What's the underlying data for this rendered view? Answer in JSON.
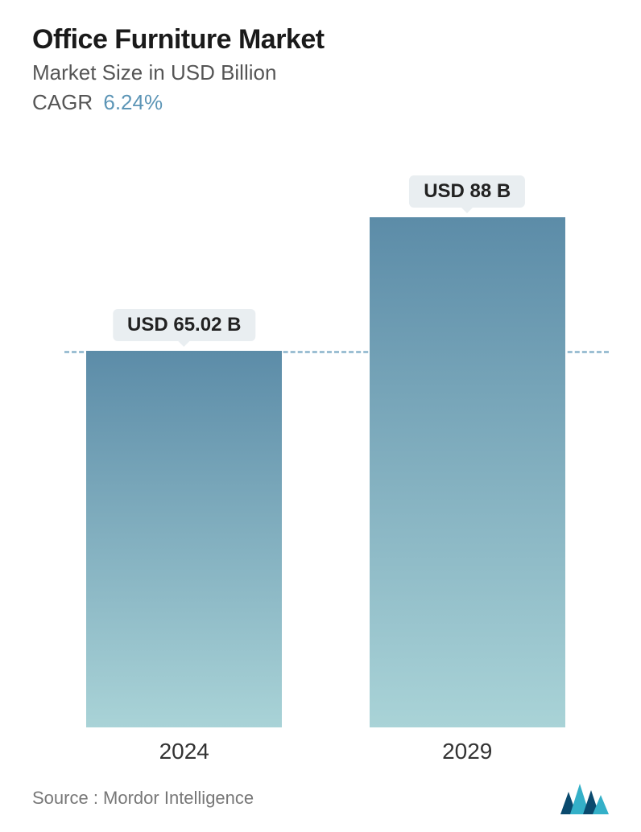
{
  "header": {
    "title": "Office Furniture Market",
    "subtitle": "Market Size in USD Billion",
    "cagr_label": "CAGR",
    "cagr_value": "6.24%",
    "cagr_value_color": "#5c95b6",
    "title_fontsize": 34,
    "subtitle_fontsize": 26
  },
  "chart": {
    "type": "bar",
    "background_color": "#ffffff",
    "bar_gradient_top": "#5c8ca8",
    "bar_gradient_bottom": "#a9d3d7",
    "badge_background": "#e9eef1",
    "badge_text_color": "#222222",
    "badge_fontsize": 24,
    "x_label_fontsize": 28,
    "x_label_color": "#333333",
    "dashed_line_color": "#5c95b6",
    "dashed_line_opacity": 0.6,
    "ylim": [
      0,
      88
    ],
    "dashed_ref_value": 65.02,
    "bar_width_pct": 36,
    "bars": [
      {
        "category": "2024",
        "value": 65.02,
        "label": "USD 65.02 B",
        "center_pct": 22
      },
      {
        "category": "2029",
        "value": 88,
        "label": "USD 88 B",
        "center_pct": 74
      }
    ]
  },
  "footer": {
    "source_text": "Source :  Mordor Intelligence",
    "logo_colors": {
      "dark": "#0a4a6e",
      "light": "#34b0c8"
    }
  }
}
